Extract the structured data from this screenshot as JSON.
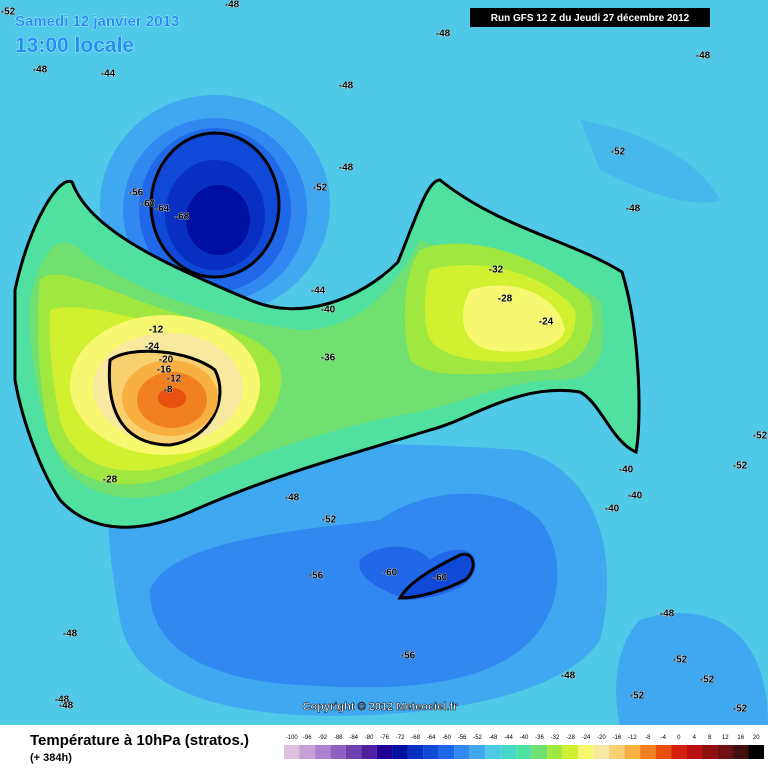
{
  "header": {
    "date": "Samedi 12 janvier 2013",
    "time": "13:00 locale",
    "run": "Run GFS 12 Z du Jeudi 27 décembre 2012"
  },
  "map": {
    "contour_labels": [
      -52,
      -48,
      -48,
      -48,
      -44,
      -48,
      -48,
      -52,
      -48,
      -52,
      -56,
      -60,
      -64,
      -68,
      -48,
      -32,
      -28,
      -24,
      -44,
      -40,
      -12,
      -24,
      -20,
      -16,
      -12,
      -8,
      -36,
      -28,
      -48,
      -52,
      -40,
      -40,
      -40,
      -56,
      -60,
      -60,
      -56,
      -48,
      -48,
      -52,
      -52,
      -48,
      -52,
      -52,
      -52,
      -52,
      -48,
      -48
    ]
  },
  "copyright": "Copyright © 2012 Meteociel.fr",
  "footer": {
    "title": "Température à 10hPa (stratos.)",
    "lead": "(+ 384h)"
  },
  "scale": {
    "values": [
      -100,
      -96,
      -92,
      -88,
      -84,
      -80,
      -76,
      -72,
      -68,
      -64,
      -60,
      -56,
      -52,
      -48,
      -44,
      -40,
      -36,
      -32,
      -28,
      -24,
      -20,
      -16,
      -12,
      -8,
      -4,
      0,
      4,
      8,
      12,
      16,
      20
    ],
    "colors": [
      "#e0c0e0",
      "#c8a0d8",
      "#b080d0",
      "#9060c0",
      "#7040b0",
      "#5020a0",
      "#200090",
      "#0010a0",
      "#0830c0",
      "#1048d8",
      "#2068e8",
      "#3088f0",
      "#40a8f0",
      "#50c8e8",
      "#48d8c8",
      "#50e0a0",
      "#70e070",
      "#a0e840",
      "#d0f030",
      "#f8f870",
      "#f8e8a0",
      "#f8d070",
      "#f8b040",
      "#f08020",
      "#e85010",
      "#d82010",
      "#b81010",
      "#901010",
      "#701010",
      "#401010",
      "#000000"
    ]
  }
}
